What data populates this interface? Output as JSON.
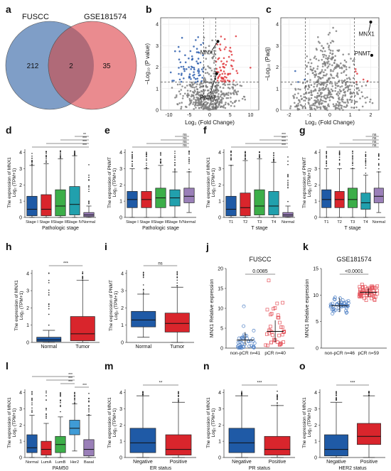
{
  "panel_letters": [
    "a",
    "b",
    "c",
    "d",
    "e",
    "f",
    "g",
    "h",
    "i",
    "j",
    "k",
    "l",
    "m",
    "n",
    "o"
  ],
  "colors": {
    "venn_left": "#7f9ec7",
    "venn_right": "#ea8b8f",
    "venn_overlap": "#b06a78",
    "down": "#2f5fae",
    "up": "#e03a3e",
    "ns_point": "#808080",
    "blue_box": "#1f5aa6",
    "red_box": "#d9252c",
    "green_box": "#3cae49",
    "teal_box": "#21a0ad",
    "purple_box": "#9a7fb8",
    "lightblue_box": "#3f9bd6",
    "scatter_left": "#4d7fc4",
    "scatter_right": "#e5535b"
  },
  "venn": {
    "left_label": "FUSCC",
    "right_label": "GSE181574",
    "left_only": "212",
    "overlap": "2",
    "right_only": "35"
  },
  "volcano_b": {
    "ylabel": "−Log₁₀ (P value)",
    "xlabel": "Log₂ (Fold Change)",
    "xticks": [
      "-10",
      "-5",
      "0",
      "5",
      "10"
    ],
    "yticks": [
      "0",
      "1",
      "2",
      "3",
      "4"
    ],
    "labels": [
      "MNX1",
      "PNMT"
    ]
  },
  "volcano_c": {
    "ylabel": "−Log₁₀ (Padj)",
    "xlabel": "Log₂ (Fold Change)",
    "xticks": [
      "-2",
      "-1",
      "0",
      "1",
      "2"
    ],
    "yticks": [
      "0",
      "1",
      "2",
      "3",
      "4"
    ],
    "labels": [
      "MNX1",
      "PNMT"
    ]
  },
  "box_panels": {
    "d": {
      "ylabel1": "The expression of MNX1",
      "ylabel2": "Log₂ (TPM+1)",
      "xlabel": "Pathologic stage",
      "yticks": [
        "0",
        "1",
        "2",
        "3",
        "4"
      ],
      "cats": [
        "Stage I",
        "Stage II",
        "Stage III",
        "Stage IV",
        "Normal"
      ],
      "sigs": [
        "**",
        "***",
        "***",
        "***"
      ]
    },
    "e": {
      "ylabel1": "The expression of PNMT",
      "ylabel2": "Log₂ (TPM+1)",
      "xlabel": "Pathologic stage",
      "yticks": [
        "0",
        "1",
        "2",
        "3",
        "4"
      ],
      "cats": [
        "Stage I",
        "Stage II",
        "Stage III",
        "Stage IV",
        "Normal"
      ],
      "sigs": [
        "ns",
        "ns",
        "ns",
        "ns"
      ]
    },
    "f": {
      "ylabel1": "The expression of MNX1",
      "ylabel2": "Log₂ (TPM+1)",
      "xlabel": "T stage",
      "yticks": [
        "0",
        "1",
        "2",
        "3",
        "4"
      ],
      "cats": [
        "T1",
        "T2",
        "T3",
        "T4",
        "Normal"
      ],
      "sigs": [
        "***",
        "***",
        "***",
        "***"
      ]
    },
    "g": {
      "ylabel1": "The expression of PNMT",
      "ylabel2": "Log₂ (TPM+1)",
      "xlabel": "T stage",
      "yticks": [
        "0",
        "1",
        "2",
        "3",
        "4"
      ],
      "cats": [
        "T1",
        "T2",
        "T3",
        "T4",
        "Normal"
      ],
      "sigs": [
        "ns",
        "ns",
        "ns",
        "ns"
      ]
    },
    "h": {
      "ylabel1": "The expression of MNX1",
      "ylabel2": "Log₂ (TPM+1)",
      "xlabel": "",
      "yticks": [
        "0",
        "1",
        "2",
        "3",
        "4"
      ],
      "cats": [
        "Normal",
        "Tumor"
      ],
      "sigs": [
        "***"
      ]
    },
    "i": {
      "ylabel1": "The expression of PNMT",
      "ylabel2": "Log₂ (TPM+1)",
      "xlabel": "",
      "yticks": [
        "0",
        "1",
        "2",
        "3",
        "4"
      ],
      "cats": [
        "Normal",
        "Tumor"
      ],
      "sigs": [
        "ns"
      ]
    },
    "l": {
      "ylabel1": "The expression of MNX1",
      "ylabel2": "Log₂ (TPM+1)",
      "xlabel": "PAM50",
      "yticks": [
        "0",
        "1",
        "2",
        "3",
        "4"
      ],
      "cats": [
        "Normal",
        "LumA",
        "LumB",
        "Her2",
        "Basal"
      ],
      "sigs": [
        "***",
        "***",
        "***",
        "***"
      ]
    },
    "m": {
      "ylabel1": "The expression of MNX1",
      "ylabel2": "Log₂ (TPM+1)",
      "xlabel": "ER status",
      "yticks": [
        "0",
        "1",
        "2",
        "3",
        "4"
      ],
      "cats": [
        "Negative",
        "Positive"
      ],
      "sigs": [
        "**"
      ]
    },
    "n": {
      "ylabel1": "The expression of MNX1",
      "ylabel2": "Log₂ (TPM+1)",
      "xlabel": "PR status",
      "yticks": [
        "0",
        "1",
        "2",
        "3",
        "4"
      ],
      "cats": [
        "Negative",
        "Positive"
      ],
      "sigs": [
        "***"
      ]
    },
    "o": {
      "ylabel1": "The expression of MNX1",
      "ylabel2": "Log₂ (TPM+1)",
      "xlabel": "HER2 status",
      "yticks": [
        "0",
        "1",
        "2",
        "3",
        "4"
      ],
      "cats": [
        "Negative",
        "Positive"
      ],
      "sigs": [
        "***"
      ]
    }
  },
  "scatter_panels": {
    "j": {
      "title": "FUSCC",
      "ylabel": "MNX1 Relative expression",
      "yticks": [
        "0",
        "5",
        "10",
        "15",
        "20"
      ],
      "cats": [
        "non-pCR n=41",
        "pCR n=40"
      ],
      "pvalue": "0.0085"
    },
    "k": {
      "title": "GSE181574",
      "ylabel": "MNX1 Relative expression",
      "yticks": [
        "0",
        "5",
        "10",
        "15"
      ],
      "cats": [
        "non-pCR n=46",
        "pCR n=59"
      ],
      "pvalue": "<0.0001"
    }
  },
  "chart_data": [
    {
      "panel": "d",
      "type": "box",
      "title": "",
      "xlabel": "Pathologic stage",
      "ylabel": "The expression of MNX1 Log₂ (TPM+1)",
      "ylim": [
        0,
        4
      ],
      "categories": [
        "Stage I",
        "Stage II",
        "Stage III",
        "Stage IV",
        "Normal"
      ],
      "series": [
        {
          "q1": [
            0.1,
            0.1,
            0.1,
            0.15,
            0.05
          ],
          "median": [
            0.5,
            0.5,
            0.7,
            0.8,
            0.15
          ],
          "q3": [
            1.3,
            1.4,
            1.7,
            1.9,
            0.3
          ],
          "whisker_low": [
            0,
            0,
            0,
            0,
            0
          ],
          "whisker_high": [
            3.2,
            3.3,
            3.6,
            3.8,
            0.7
          ]
        }
      ],
      "significance": [
        "**",
        "***",
        "***",
        "***"
      ]
    },
    {
      "panel": "e",
      "type": "box",
      "title": "",
      "xlabel": "Pathologic stage",
      "ylabel": "The expression of PNMT Log₂ (TPM+1)",
      "ylim": [
        0,
        4
      ],
      "categories": [
        "Stage I",
        "Stage II",
        "Stage III",
        "Stage IV",
        "Normal"
      ],
      "series": [
        {
          "q1": [
            0.6,
            0.6,
            0.6,
            0.7,
            0.9
          ],
          "median": [
            1.1,
            1.1,
            1.2,
            1.2,
            1.3
          ],
          "q3": [
            1.6,
            1.6,
            1.8,
            1.7,
            1.8
          ],
          "whisker_low": [
            0,
            0,
            0,
            0,
            0.3
          ],
          "whisker_high": [
            3.0,
            3.0,
            3.2,
            2.8,
            2.8
          ]
        }
      ],
      "significance": [
        "ns",
        "ns",
        "ns",
        "ns"
      ]
    },
    {
      "panel": "f",
      "type": "box",
      "title": "",
      "xlabel": "T stage",
      "ylabel": "The expression of MNX1 Log₂ (TPM+1)",
      "ylim": [
        0,
        4
      ],
      "categories": [
        "T1",
        "T2",
        "T3",
        "T4",
        "Normal"
      ],
      "series": [
        {
          "q1": [
            0.1,
            0.1,
            0.15,
            0.15,
            0.05
          ],
          "median": [
            0.5,
            0.6,
            0.7,
            0.7,
            0.15
          ],
          "q3": [
            1.3,
            1.5,
            1.7,
            1.6,
            0.3
          ],
          "whisker_low": [
            0,
            0,
            0,
            0,
            0
          ],
          "whisker_high": [
            3.2,
            3.5,
            3.6,
            3.4,
            0.7
          ]
        }
      ],
      "significance": [
        "***",
        "***",
        "***",
        "***"
      ]
    },
    {
      "panel": "g",
      "type": "box",
      "title": "",
      "xlabel": "T stage",
      "ylabel": "The expression of PNMT Log₂ (TPM+1)",
      "ylim": [
        0,
        4
      ],
      "categories": [
        "T1",
        "T2",
        "T3",
        "T4",
        "Normal"
      ],
      "series": [
        {
          "q1": [
            0.6,
            0.6,
            0.6,
            0.5,
            0.9
          ],
          "median": [
            1.1,
            1.1,
            1.1,
            0.9,
            1.3
          ],
          "q3": [
            1.7,
            1.6,
            1.8,
            1.5,
            1.8
          ],
          "whisker_low": [
            0,
            0,
            0,
            0,
            0.3
          ],
          "whisker_high": [
            3.0,
            3.0,
            3.0,
            2.6,
            2.8
          ]
        }
      ],
      "significance": [
        "ns",
        "ns",
        "ns",
        "ns"
      ]
    },
    {
      "panel": "h",
      "type": "box",
      "title": "",
      "xlabel": "",
      "ylabel": "The expression of MNX1 Log₂ (TPM+1)",
      "ylim": [
        0,
        4
      ],
      "categories": [
        "Normal",
        "Tumor"
      ],
      "series": [
        {
          "q1": [
            0.05,
            0.1
          ],
          "median": [
            0.15,
            0.5
          ],
          "q3": [
            0.3,
            1.5
          ],
          "whisker_low": [
            0,
            0
          ],
          "whisker_high": [
            0.7,
            3.6
          ]
        }
      ],
      "significance": [
        "***"
      ]
    },
    {
      "panel": "i",
      "type": "box",
      "title": "",
      "xlabel": "",
      "ylabel": "The expression of PNMT Log₂ (TPM+1)",
      "ylim": [
        0,
        4
      ],
      "categories": [
        "Normal",
        "Tumor"
      ],
      "series": [
        {
          "q1": [
            0.9,
            0.6
          ],
          "median": [
            1.3,
            1.1
          ],
          "q3": [
            1.8,
            1.7
          ],
          "whisker_low": [
            0.3,
            0
          ],
          "whisker_high": [
            2.8,
            3.2
          ]
        }
      ],
      "significance": [
        "ns"
      ]
    },
    {
      "panel": "j",
      "type": "scatter",
      "title": "FUSCC",
      "xlabel": "",
      "ylabel": "MNX1 Relative expression",
      "ylim": [
        0,
        20
      ],
      "categories": [
        "non-pCR n=41",
        "pCR n=40"
      ],
      "means": [
        2.0,
        4.2
      ],
      "sd_low": [
        0.8,
        1.5
      ],
      "sd_high": [
        4.0,
        7.0
      ],
      "pvalue": "0.0085"
    },
    {
      "panel": "k",
      "type": "scatter",
      "title": "GSE181574",
      "xlabel": "",
      "ylabel": "MNX1 Relative expression",
      "ylim": [
        0,
        15
      ],
      "categories": [
        "non-pCR n=46",
        "pCR n=59"
      ],
      "means": [
        8.0,
        10.5
      ],
      "sd_low": [
        6.8,
        9.7
      ],
      "sd_high": [
        9.5,
        11.3
      ],
      "pvalue": "<0.0001"
    },
    {
      "panel": "l",
      "type": "box",
      "title": "",
      "xlabel": "PAM50",
      "ylabel": "The expression of MNX1 Log₂ (TPM+1)",
      "ylim": [
        0,
        4
      ],
      "categories": [
        "Normal",
        "LumA",
        "LumB",
        "Her2",
        "Basal"
      ],
      "series": [
        {
          "q1": [
            0.3,
            0.15,
            0.3,
            1.4,
            0.1
          ],
          "median": [
            0.6,
            0.5,
            0.8,
            1.8,
            0.5
          ],
          "q3": [
            1.4,
            1.0,
            1.3,
            2.3,
            1.1
          ],
          "whisker_low": [
            0,
            0,
            0,
            0.4,
            0
          ],
          "whisker_high": [
            2.6,
            2.1,
            2.5,
            3.3,
            2.6
          ]
        }
      ],
      "significance": [
        "***",
        "***",
        "***",
        "***"
      ]
    },
    {
      "panel": "m",
      "type": "box",
      "title": "",
      "xlabel": "ER status",
      "ylabel": "The expression of MNX1 Log₂ (TPM+1)",
      "ylim": [
        0,
        4
      ],
      "categories": [
        "Negative",
        "Positive"
      ],
      "series": [
        {
          "q1": [
            0.3,
            0.15
          ],
          "median": [
            0.9,
            0.5
          ],
          "q3": [
            1.8,
            1.4
          ],
          "whisker_low": [
            0,
            0
          ],
          "whisker_high": [
            3.8,
            3.4
          ]
        }
      ],
      "significance": [
        "**"
      ]
    },
    {
      "panel": "n",
      "type": "box",
      "title": "",
      "xlabel": "PR status",
      "ylabel": "The expression of MNX1 Log₂ (TPM+1)",
      "ylim": [
        0,
        4
      ],
      "categories": [
        "Negative",
        "Positive"
      ],
      "series": [
        {
          "q1": [
            0.3,
            0.15
          ],
          "median": [
            0.9,
            0.5
          ],
          "q3": [
            1.8,
            1.3
          ],
          "whisker_low": [
            0,
            0
          ],
          "whisker_high": [
            3.8,
            3.2
          ]
        }
      ],
      "significance": [
        "***"
      ]
    },
    {
      "panel": "o",
      "type": "box",
      "title": "",
      "xlabel": "HER2 status",
      "ylabel": "The expression of MNX1 Log₂ (TPM+1)",
      "ylim": [
        0,
        4
      ],
      "categories": [
        "Negative",
        "Positive"
      ],
      "series": [
        {
          "q1": [
            0.1,
            0.8
          ],
          "median": [
            0.5,
            1.3
          ],
          "q3": [
            1.4,
            2.1
          ],
          "whisker_low": [
            0,
            0
          ],
          "whisker_high": [
            3.4,
            3.8
          ]
        }
      ],
      "significance": [
        "***"
      ]
    }
  ]
}
